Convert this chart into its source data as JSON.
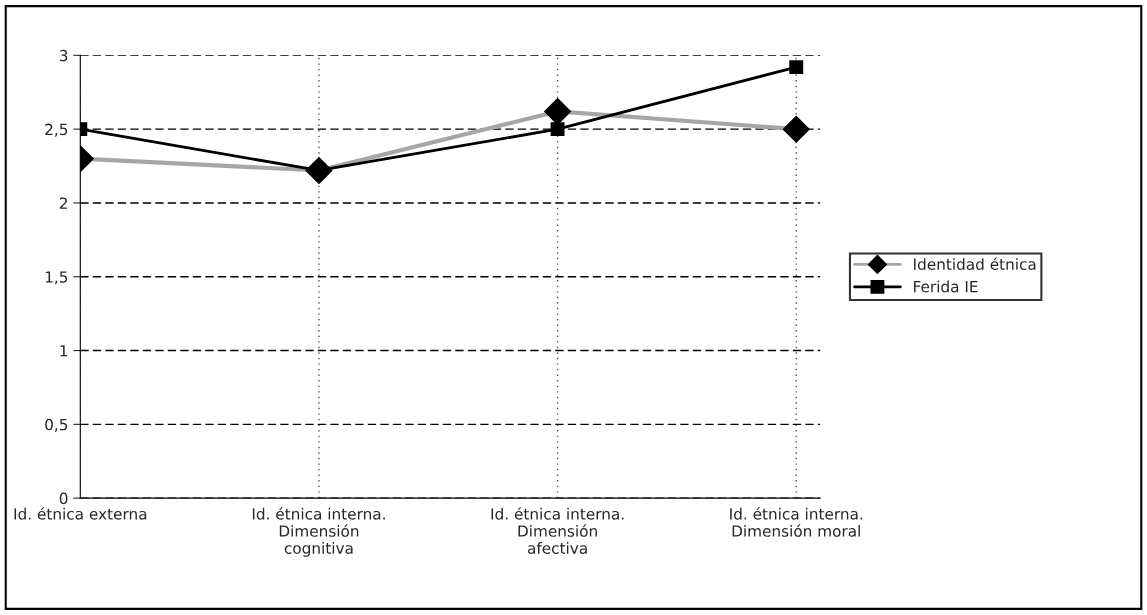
{
  "chart_data": {
    "type": "line",
    "categories": [
      "Id. étnica externa",
      "Id. étnica interna.\nDimensión\ncognitiva",
      "Id. étnica interna.\nDimensión\nafectiva",
      "Id. étnica interna.\nDimensión moral"
    ],
    "series": [
      {
        "name": "Identidad étnica",
        "color": "#a6a6a6",
        "marker": "diamond",
        "values": [
          2.3,
          2.22,
          2.62,
          2.5
        ]
      },
      {
        "name": "Ferida IE",
        "color": "#000000",
        "marker": "square",
        "values": [
          2.5,
          2.22,
          2.5,
          2.92
        ]
      }
    ],
    "ylim": [
      0,
      3
    ],
    "yticks": [
      0,
      {
        "value": 0.5,
        "label": "0,5"
      },
      1,
      {
        "value": 1.5,
        "label": "1,5"
      },
      2,
      {
        "value": 2.5,
        "label": "2,5"
      },
      3
    ],
    "grid": true,
    "legend": "right"
  }
}
